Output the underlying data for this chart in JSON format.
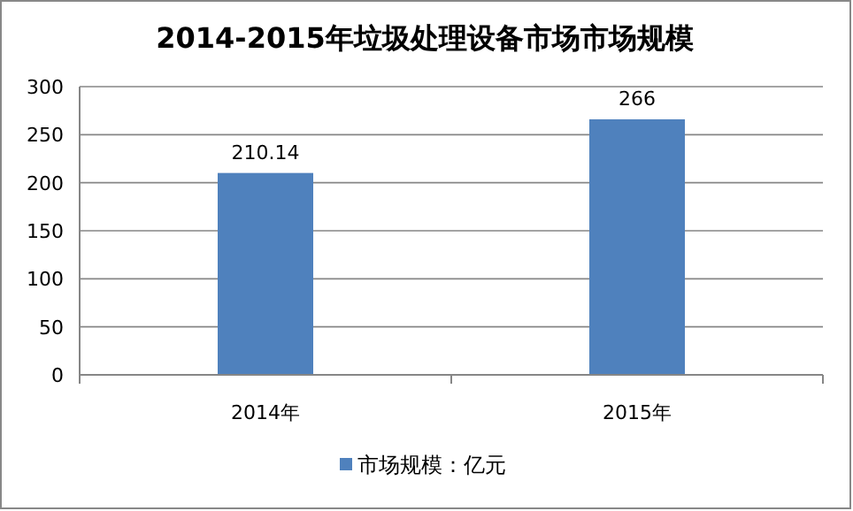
{
  "chart_data": {
    "type": "bar",
    "title": "2014-2015年垃圾处理设备市场市场规模",
    "categories": [
      "2014年",
      "2015年"
    ],
    "series": [
      {
        "name": "市场规模：亿元",
        "color": "#4f81bd",
        "values": [
          210.14,
          266
        ]
      }
    ],
    "ylim": [
      0,
      300
    ],
    "yticks": [
      0,
      50,
      100,
      150,
      200,
      250,
      300
    ],
    "grid": "y",
    "legend": "bottom",
    "data_labels": true
  }
}
